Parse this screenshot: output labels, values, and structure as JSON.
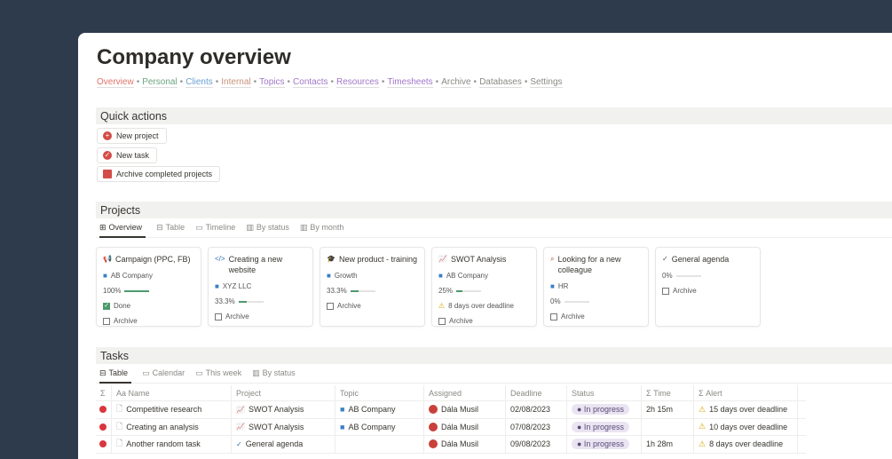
{
  "title": "Company overview",
  "nav": [
    {
      "label": "Overview",
      "color": "#e0736a"
    },
    {
      "label": "Personal",
      "color": "#6aa57f"
    },
    {
      "label": "Clients",
      "color": "#6a9fd0"
    },
    {
      "label": "Internal",
      "color": "#c7937a"
    },
    {
      "label": "Topics",
      "color": "#a277c9"
    },
    {
      "label": "Contacts",
      "color": "#a277c9"
    },
    {
      "label": "Resources",
      "color": "#a277c9"
    },
    {
      "label": "Timesheets",
      "color": "#a277c9"
    },
    {
      "label": "Archive",
      "color": "#8a8985"
    },
    {
      "label": "Databases",
      "color": "#8a8985"
    },
    {
      "label": "Settings",
      "color": "#8a8985"
    }
  ],
  "quick_actions": {
    "title": "Quick actions",
    "buttons": [
      {
        "label": "New project",
        "icon": "plus-circle-icon"
      },
      {
        "label": "New task",
        "icon": "check-circle-icon"
      },
      {
        "label": "Archive completed projects",
        "icon": "archive-box-icon"
      }
    ]
  },
  "projects": {
    "title": "Projects",
    "tabs": [
      "Overview",
      "Table",
      "Timeline",
      "By status",
      "By month"
    ],
    "cards": [
      {
        "name": "Campaign (PPC, FB)",
        "icon": "megaphone-icon",
        "topic": "AB Company",
        "progress_label": "100%",
        "progress": 100,
        "status": "Done",
        "alert": "",
        "archive": "Archive"
      },
      {
        "name": "Creating a new website",
        "icon": "code-icon",
        "topic": "XYZ LLC",
        "progress_label": "33.3%",
        "progress": 33.3,
        "status": "",
        "alert": "",
        "archive": "Archive"
      },
      {
        "name": "New product - training",
        "icon": "graduation-cap-icon",
        "topic": "Growth",
        "progress_label": "33.3%",
        "progress": 33.3,
        "status": "",
        "alert": "",
        "archive": "Archive"
      },
      {
        "name": "SWOT Analysis",
        "icon": "line-chart-icon",
        "topic": "AB Company",
        "progress_label": "25%",
        "progress": 25,
        "status": "",
        "alert": "8 days over deadline",
        "archive": "Archive"
      },
      {
        "name": "Looking for a new colleague",
        "icon": "search-icon",
        "topic": "HR",
        "progress_label": "0%",
        "progress": 0,
        "status": "",
        "alert": "",
        "archive": "Archive"
      },
      {
        "name": "General agenda",
        "icon": "checkmark-icon",
        "topic": "",
        "progress_label": "0%",
        "progress": 0,
        "status": "",
        "alert": "",
        "archive": "Archive"
      }
    ]
  },
  "tasks": {
    "title": "Tasks",
    "tabs": [
      "Table",
      "Calendar",
      "This week",
      "By status"
    ],
    "columns": [
      "Σ",
      "Aa Name",
      "Project",
      "Topic",
      "Assigned",
      "Deadline",
      "Status",
      "Σ  Time",
      "Σ  Alert"
    ],
    "rows": [
      {
        "name": "Competitive research",
        "project": "SWOT Analysis",
        "topic": "AB Company",
        "assigned": "Dála Musil",
        "deadline": "02/08/2023",
        "status": "In progress",
        "time": "2h 15m",
        "alert": "15 days over deadline"
      },
      {
        "name": "Creating an analysis",
        "project": "SWOT Analysis",
        "topic": "AB Company",
        "assigned": "Dála Musil",
        "deadline": "07/08/2023",
        "status": "In progress",
        "time": "",
        "alert": "10 days over deadline"
      },
      {
        "name": "Another random task",
        "project": "General agenda",
        "topic": "",
        "assigned": "Dála Musil",
        "deadline": "09/08/2023",
        "status": "In progress",
        "time": "1h 28m",
        "alert": "8 days over deadline"
      }
    ]
  }
}
